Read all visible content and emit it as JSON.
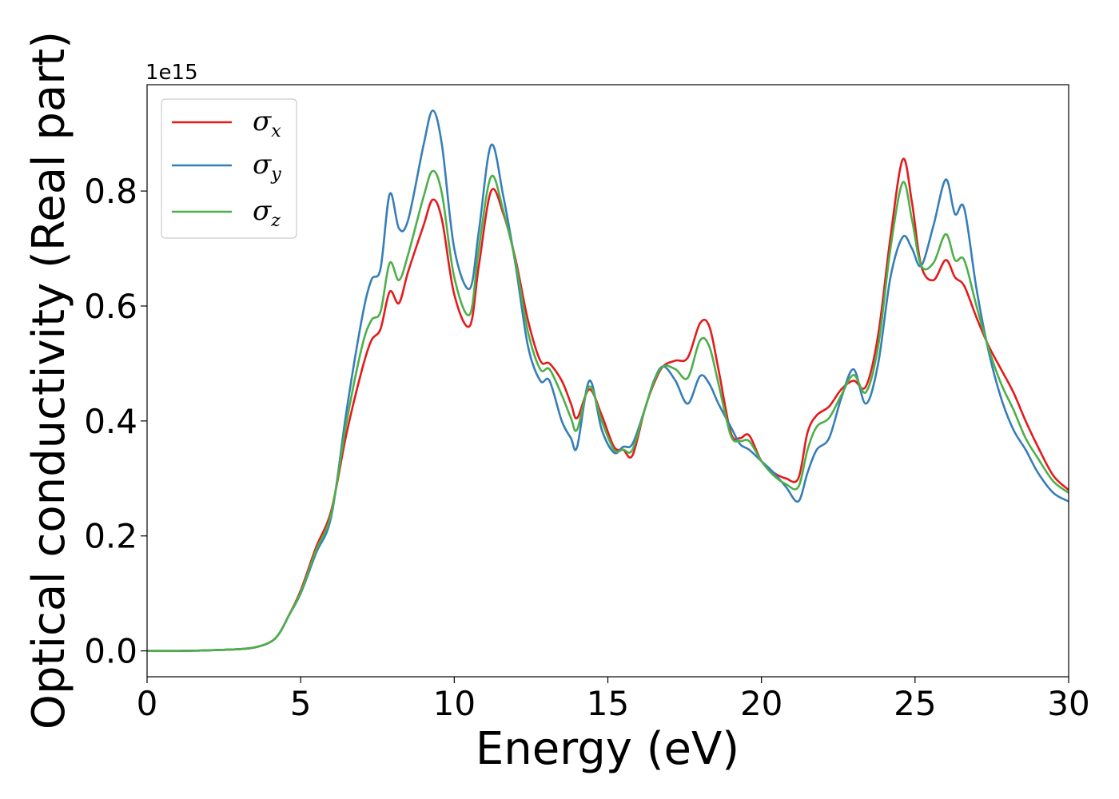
{
  "chart_data": {
    "type": "line",
    "title": "",
    "xlabel": "Energy (eV)",
    "ylabel": "Optical conductivity (Real part)",
    "y_offset_label": "1e15",
    "xlim": [
      0,
      30
    ],
    "ylim": [
      -0.045,
      0.985
    ],
    "xticks": [
      0,
      5,
      10,
      15,
      20,
      25,
      30
    ],
    "xtick_labels": [
      "0",
      "5",
      "10",
      "15",
      "20",
      "25",
      "30"
    ],
    "yticks": [
      0.0,
      0.2,
      0.4,
      0.6,
      0.8
    ],
    "ytick_labels": [
      "0.0",
      "0.2",
      "0.4",
      "0.6",
      "0.8"
    ],
    "grid": false,
    "legend_position": "upper-left",
    "series": [
      {
        "name": "σx",
        "symbol": "σ",
        "subscript": "x",
        "color": "#e41a1c",
        "x": [
          0,
          1,
          2,
          3,
          3.5,
          4.0,
          4.3,
          4.6,
          5.0,
          5.5,
          6.0,
          6.5,
          7.0,
          7.3,
          7.6,
          7.9,
          8.2,
          8.5,
          9.0,
          9.3,
          9.6,
          10.0,
          10.5,
          10.8,
          11.2,
          11.6,
          12.0,
          12.4,
          12.8,
          13.1,
          13.5,
          13.8,
          14.0,
          14.4,
          14.8,
          15.2,
          15.5,
          15.8,
          16.2,
          16.5,
          16.8,
          17.2,
          17.6,
          18.0,
          18.3,
          18.6,
          19.0,
          19.3,
          19.6,
          20.0,
          20.4,
          20.8,
          21.2,
          21.5,
          21.8,
          22.2,
          22.6,
          23.0,
          23.4,
          23.8,
          24.2,
          24.6,
          24.9,
          25.2,
          25.6,
          26.0,
          26.3,
          26.6,
          27.0,
          27.4,
          27.8,
          28.2,
          28.6,
          29.0,
          29.5,
          30.0
        ],
        "y": [
          0.0,
          0.0,
          0.001,
          0.003,
          0.006,
          0.015,
          0.03,
          0.06,
          0.105,
          0.18,
          0.245,
          0.38,
          0.49,
          0.54,
          0.56,
          0.625,
          0.605,
          0.66,
          0.74,
          0.785,
          0.75,
          0.62,
          0.565,
          0.67,
          0.8,
          0.76,
          0.68,
          0.575,
          0.505,
          0.5,
          0.47,
          0.43,
          0.405,
          0.455,
          0.41,
          0.355,
          0.35,
          0.34,
          0.42,
          0.465,
          0.495,
          0.505,
          0.51,
          0.57,
          0.565,
          0.49,
          0.38,
          0.37,
          0.375,
          0.33,
          0.31,
          0.3,
          0.3,
          0.38,
          0.41,
          0.425,
          0.455,
          0.47,
          0.46,
          0.55,
          0.72,
          0.855,
          0.78,
          0.67,
          0.645,
          0.68,
          0.65,
          0.635,
          0.58,
          0.53,
          0.49,
          0.45,
          0.4,
          0.355,
          0.305,
          0.28
        ]
      },
      {
        "name": "σy",
        "symbol": "σ",
        "subscript": "y",
        "color": "#377eb8",
        "x": [
          0,
          1,
          2,
          3,
          3.5,
          4.0,
          4.3,
          4.6,
          5.0,
          5.5,
          6.0,
          6.5,
          7.0,
          7.3,
          7.6,
          7.9,
          8.2,
          8.5,
          9.0,
          9.3,
          9.6,
          10.0,
          10.5,
          10.8,
          11.2,
          11.6,
          12.0,
          12.4,
          12.8,
          13.1,
          13.5,
          13.8,
          14.0,
          14.4,
          14.8,
          15.2,
          15.5,
          15.8,
          16.2,
          16.5,
          16.8,
          17.2,
          17.6,
          18.0,
          18.3,
          18.6,
          19.0,
          19.3,
          19.6,
          20.0,
          20.4,
          20.8,
          21.2,
          21.5,
          21.8,
          22.2,
          22.6,
          23.0,
          23.4,
          23.8,
          24.2,
          24.6,
          24.9,
          25.2,
          25.6,
          26.0,
          26.3,
          26.6,
          27.0,
          27.4,
          27.8,
          28.2,
          28.6,
          29.0,
          29.5,
          30.0
        ],
        "y": [
          0.0,
          0.0,
          0.001,
          0.003,
          0.006,
          0.015,
          0.03,
          0.06,
          0.1,
          0.17,
          0.235,
          0.42,
          0.58,
          0.645,
          0.665,
          0.795,
          0.735,
          0.75,
          0.88,
          0.94,
          0.88,
          0.7,
          0.63,
          0.73,
          0.88,
          0.79,
          0.67,
          0.53,
          0.47,
          0.47,
          0.4,
          0.37,
          0.355,
          0.47,
          0.385,
          0.345,
          0.355,
          0.36,
          0.42,
          0.47,
          0.495,
          0.47,
          0.43,
          0.478,
          0.465,
          0.43,
          0.39,
          0.36,
          0.35,
          0.33,
          0.31,
          0.285,
          0.26,
          0.31,
          0.35,
          0.37,
          0.44,
          0.49,
          0.43,
          0.5,
          0.65,
          0.72,
          0.7,
          0.67,
          0.74,
          0.82,
          0.76,
          0.77,
          0.63,
          0.52,
          0.44,
          0.385,
          0.35,
          0.31,
          0.275,
          0.26
        ]
      },
      {
        "name": "σz",
        "symbol": "σ",
        "subscript": "z",
        "color": "#4daf4a",
        "x": [
          0,
          1,
          2,
          3,
          3.5,
          4.0,
          4.3,
          4.6,
          5.0,
          5.5,
          6.0,
          6.5,
          7.0,
          7.3,
          7.6,
          7.9,
          8.2,
          8.5,
          9.0,
          9.3,
          9.6,
          10.0,
          10.5,
          10.8,
          11.2,
          11.6,
          12.0,
          12.4,
          12.8,
          13.1,
          13.5,
          13.8,
          14.0,
          14.4,
          14.8,
          15.2,
          15.5,
          15.8,
          16.2,
          16.5,
          16.8,
          17.2,
          17.6,
          18.0,
          18.3,
          18.6,
          19.0,
          19.3,
          19.6,
          20.0,
          20.4,
          20.8,
          21.2,
          21.5,
          21.8,
          22.2,
          22.6,
          23.0,
          23.4,
          23.8,
          24.2,
          24.6,
          24.9,
          25.2,
          25.6,
          26.0,
          26.3,
          26.6,
          27.0,
          27.4,
          27.8,
          28.2,
          28.6,
          29.0,
          29.5,
          30.0
        ],
        "y": [
          0.0,
          0.0,
          0.001,
          0.003,
          0.006,
          0.015,
          0.03,
          0.06,
          0.102,
          0.175,
          0.24,
          0.4,
          0.53,
          0.575,
          0.59,
          0.675,
          0.645,
          0.69,
          0.79,
          0.835,
          0.795,
          0.65,
          0.585,
          0.7,
          0.825,
          0.765,
          0.675,
          0.555,
          0.49,
          0.49,
          0.445,
          0.405,
          0.385,
          0.46,
          0.4,
          0.35,
          0.35,
          0.35,
          0.42,
          0.468,
          0.495,
          0.49,
          0.475,
          0.54,
          0.53,
          0.465,
          0.375,
          0.365,
          0.365,
          0.33,
          0.305,
          0.29,
          0.285,
          0.35,
          0.39,
          0.405,
          0.445,
          0.48,
          0.45,
          0.53,
          0.7,
          0.815,
          0.75,
          0.67,
          0.675,
          0.725,
          0.68,
          0.68,
          0.6,
          0.525,
          0.465,
          0.42,
          0.37,
          0.335,
          0.295,
          0.275
        ]
      }
    ]
  }
}
